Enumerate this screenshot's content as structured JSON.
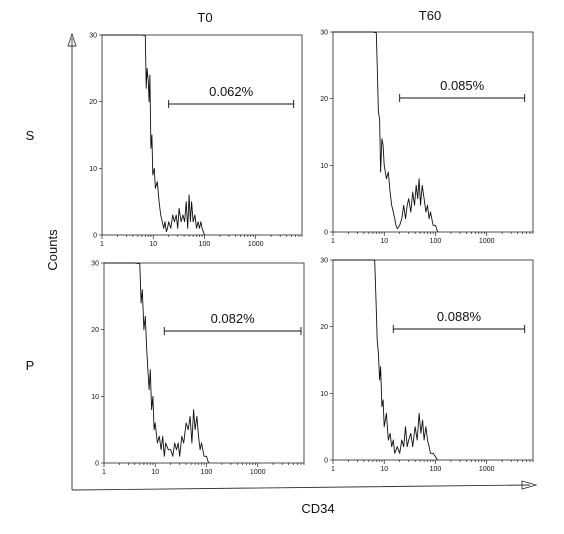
{
  "figure": {
    "column_titles": [
      "T0",
      "T60"
    ],
    "row_labels": [
      "S",
      "P"
    ],
    "y_axis_title": "Counts",
    "x_axis_title": "CD34"
  },
  "chart_data": [
    {
      "type": "area",
      "panel": "S-T0",
      "row": "S",
      "column": "T0",
      "xscale": "log",
      "xlim": [
        1,
        8000
      ],
      "ylim": [
        0,
        30
      ],
      "xticks": [
        1,
        10,
        100,
        1000
      ],
      "xtick_labels": [
        "1",
        "10",
        "100",
        "1000"
      ],
      "yticks": [
        0,
        10,
        20,
        30
      ],
      "ytick_labels": [
        "0",
        "10",
        "20",
        "30"
      ],
      "gate": {
        "label": "0.062%",
        "x_start": 20,
        "x_end": 5500
      },
      "x": [
        1,
        2,
        4,
        6,
        7,
        7.3,
        7.6,
        8,
        8.3,
        8.6,
        9,
        9.4,
        9.8,
        10.5,
        11,
        12,
        13,
        14,
        15,
        16,
        17,
        18,
        19,
        20,
        22,
        24,
        26,
        28,
        30,
        32,
        35,
        38,
        41,
        44,
        47,
        50,
        53,
        56,
        60,
        65,
        70,
        75,
        80,
        85,
        90,
        95,
        100
      ],
      "y": [
        30,
        30,
        30,
        30,
        29.9,
        22,
        25,
        23,
        20,
        24,
        13,
        15,
        9,
        10,
        7,
        8,
        5,
        3,
        2,
        1,
        2,
        0.5,
        1,
        2,
        1,
        3,
        2,
        3,
        1,
        4,
        2,
        3,
        2,
        5,
        1,
        6,
        2,
        5,
        2,
        3,
        1,
        2,
        1,
        2,
        1,
        0.5,
        0
      ]
    },
    {
      "type": "area",
      "panel": "S-T60",
      "row": "S",
      "column": "T60",
      "xscale": "log",
      "xlim": [
        1,
        8000
      ],
      "ylim": [
        0,
        30
      ],
      "xticks": [
        1,
        10,
        100,
        1000
      ],
      "xtick_labels": [
        "1",
        "10",
        "100",
        "1000"
      ],
      "yticks": [
        0,
        10,
        20,
        30
      ],
      "ytick_labels": [
        "0",
        "10",
        "20",
        "30"
      ],
      "gate": {
        "label": "0.085%",
        "x_start": 20,
        "x_end": 5500
      },
      "x": [
        1,
        2,
        4,
        6,
        7,
        7.3,
        7.7,
        8.1,
        8.5,
        9,
        9.5,
        10,
        11,
        12,
        13,
        14,
        15,
        16,
        17,
        18,
        20,
        22,
        24,
        26,
        28,
        30,
        33,
        36,
        39,
        42,
        45,
        48,
        51,
        55,
        60,
        65,
        70,
        75,
        80,
        90,
        100,
        110
      ],
      "y": [
        30,
        30,
        30,
        30,
        29.9,
        25,
        18,
        17,
        9,
        14,
        13,
        10,
        8,
        9,
        6,
        4,
        3,
        2,
        1,
        0.5,
        1,
        2,
        4,
        2,
        4,
        5,
        3,
        6,
        4,
        7,
        5,
        8,
        4,
        7,
        5,
        3,
        4,
        2,
        3,
        1,
        1,
        0
      ]
    },
    {
      "type": "area",
      "panel": "P-T0",
      "row": "P",
      "column": "T0",
      "xscale": "log",
      "xlim": [
        1,
        8000
      ],
      "ylim": [
        0,
        30
      ],
      "xticks": [
        1,
        10,
        100,
        1000
      ],
      "xtick_labels": [
        "1",
        "10",
        "100",
        "1000"
      ],
      "yticks": [
        0,
        10,
        20,
        30
      ],
      "ytick_labels": [
        "0",
        "10",
        "20",
        "30"
      ],
      "gate": {
        "label": "0.082%",
        "x_start": 15,
        "x_end": 7000
      },
      "x": [
        1,
        2,
        4,
        5,
        5.3,
        5.6,
        6,
        6.4,
        6.8,
        7.2,
        7.6,
        8,
        8.5,
        9,
        9.5,
        10,
        11,
        12,
        13,
        14,
        15,
        16,
        18,
        20,
        22,
        24,
        26,
        28,
        30,
        33,
        36,
        40,
        44,
        48,
        52,
        56,
        60,
        65,
        70,
        75,
        80,
        90,
        100,
        110
      ],
      "y": [
        30,
        30,
        30,
        29.9,
        24,
        26,
        20,
        22,
        17,
        14,
        11,
        14,
        8,
        10,
        5,
        6,
        3,
        4,
        2,
        4,
        1,
        3,
        2,
        2,
        1,
        3,
        2,
        3,
        1,
        4,
        3,
        6,
        5,
        7,
        3,
        8,
        5,
        7,
        4,
        2,
        3,
        1,
        1,
        0
      ]
    },
    {
      "type": "area",
      "panel": "P-T60",
      "row": "P",
      "column": "T60",
      "xscale": "log",
      "xlim": [
        1,
        8000
      ],
      "ylim": [
        0,
        30
      ],
      "xticks": [
        1,
        10,
        100,
        1000
      ],
      "xtick_labels": [
        "1",
        "10",
        "100",
        "1000"
      ],
      "yticks": [
        0,
        10,
        20,
        30
      ],
      "ytick_labels": [
        "0",
        "10",
        "20",
        "30"
      ],
      "gate": {
        "label": "0.088%",
        "x_start": 15,
        "x_end": 5500
      },
      "x": [
        1,
        2,
        4,
        6,
        6.5,
        6.9,
        7.3,
        7.7,
        8.1,
        8.5,
        9,
        9.5,
        10,
        11,
        12,
        13,
        14,
        15,
        16,
        18,
        20,
        22,
        24,
        26,
        28,
        30,
        33,
        36,
        40,
        44,
        48,
        52,
        56,
        60,
        65,
        70,
        75,
        80,
        90,
        100,
        110
      ],
      "y": [
        30,
        30,
        30,
        30,
        29.9,
        24,
        18,
        16,
        12,
        14,
        8,
        9,
        5,
        7,
        3,
        4,
        2,
        3,
        1,
        2,
        1,
        3,
        2,
        5,
        2,
        3,
        4,
        2,
        5,
        3,
        7,
        4,
        6,
        3,
        5,
        3,
        2,
        1,
        1,
        0.5,
        0
      ]
    }
  ]
}
